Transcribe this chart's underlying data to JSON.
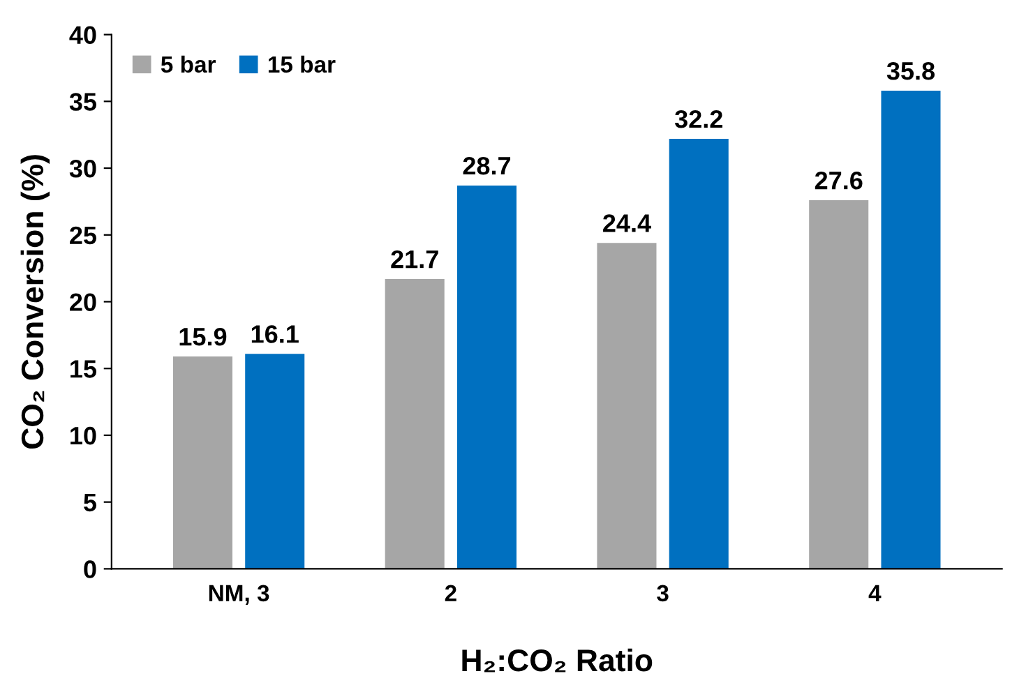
{
  "chart_data": {
    "type": "bar",
    "xlabel": "H₂:CO₂ Ratio",
    "ylabel": "CO₂ Conversion (%)",
    "categories": [
      "NM, 3",
      "2",
      "3",
      "4"
    ],
    "series": [
      {
        "name": "5 bar",
        "color": "#a6a6a6",
        "values": [
          15.9,
          21.7,
          24.4,
          27.6
        ]
      },
      {
        "name": "15 bar",
        "color": "#0070c0",
        "values": [
          16.1,
          28.7,
          32.2,
          35.8
        ]
      }
    ],
    "ylim": [
      0,
      40
    ],
    "yticks": [
      0,
      5,
      10,
      15,
      20,
      25,
      30,
      35,
      40
    ],
    "data_labels": true,
    "legend": "top left",
    "grid": false
  }
}
